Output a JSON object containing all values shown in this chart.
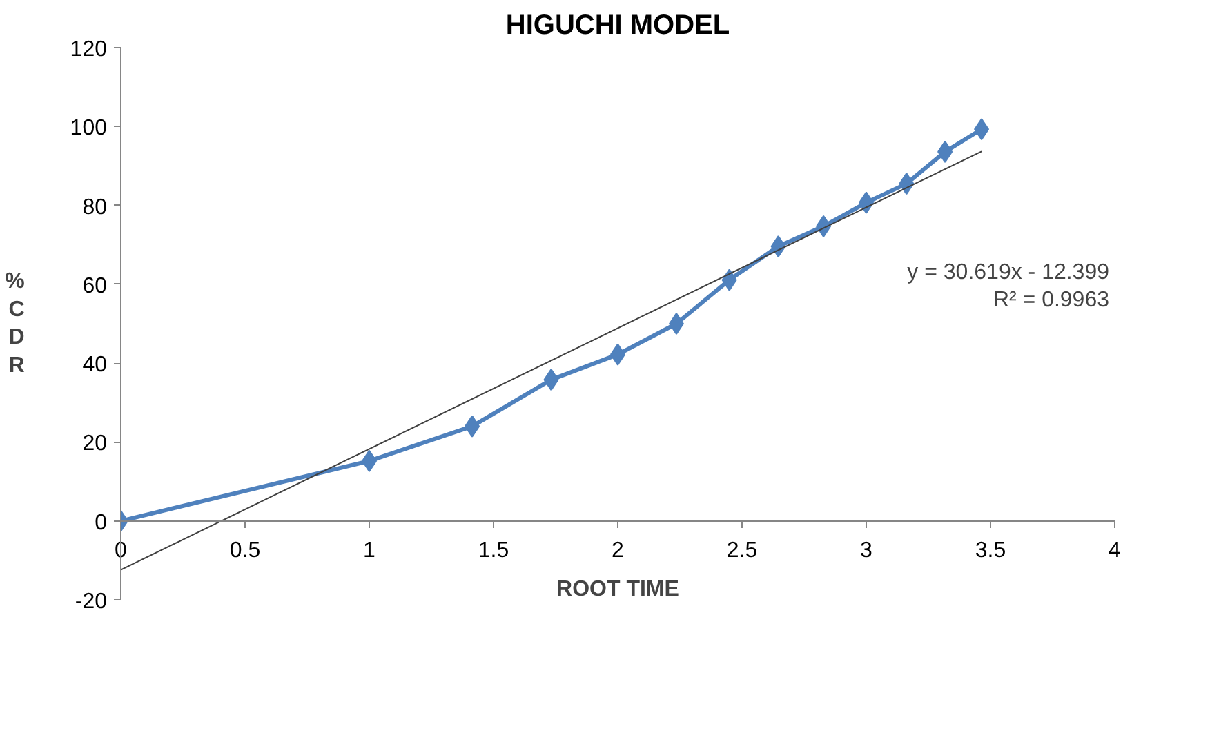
{
  "chart_data": {
    "type": "line",
    "title": "HIGUCHI MODEL",
    "xlabel": "ROOT TIME",
    "ylabel": "%CDR",
    "x": [
      0,
      1,
      1.414,
      1.732,
      2,
      2.236,
      2.449,
      2.646,
      2.828,
      3,
      3.162,
      3.317,
      3.464
    ],
    "series": [
      {
        "color": "#4f81bd",
        "values": [
          0,
          15.2,
          24,
          35.8,
          42.2,
          50,
          61.1,
          69.6,
          74.7,
          80.7,
          85.5,
          93.6,
          99.3
        ],
        "marker": "diamond"
      },
      {
        "type": "line",
        "color": "#404040",
        "x": [
          0,
          3.464
        ],
        "values": [
          -12.4,
          93.7
        ],
        "marker": "none"
      }
    ],
    "annotations": [
      "y = 30.619x - 12.399",
      "R² = 0.9963"
    ],
    "xlim": [
      0,
      4
    ],
    "xticks": [
      0,
      {
        "value": 0.5,
        "label": "0.5"
      },
      1,
      {
        "value": 1.5,
        "label": "1.5"
      },
      2,
      {
        "value": 2.5,
        "label": "2.5"
      },
      3,
      {
        "value": 3.5,
        "label": "3.5"
      },
      4
    ],
    "ylim": [
      -20,
      120
    ],
    "yticks": [
      -20,
      0,
      20,
      40,
      60,
      80,
      100,
      120
    ],
    "grid": false
  }
}
